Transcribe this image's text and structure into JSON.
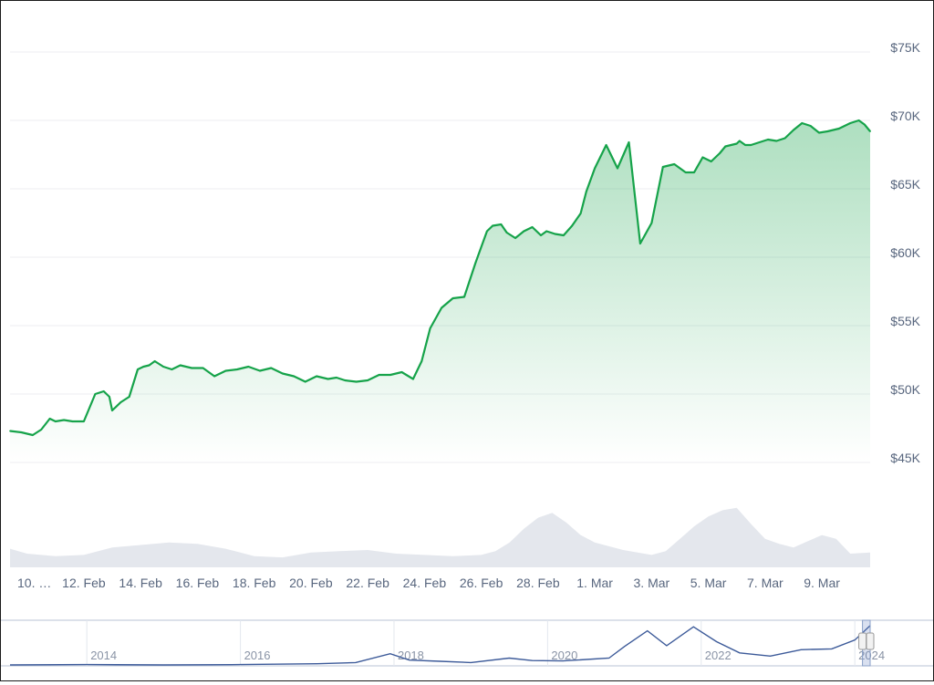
{
  "chart_data": {
    "type": "line",
    "title": "",
    "xlabel": "",
    "ylabel": "",
    "ylim": [
      45000,
      75000
    ],
    "y_ticks": [
      {
        "value": 75000,
        "label": "$75K"
      },
      {
        "value": 70000,
        "label": "$70K"
      },
      {
        "value": 65000,
        "label": "$65K"
      },
      {
        "value": 60000,
        "label": "$60K"
      },
      {
        "value": 55000,
        "label": "$55K"
      },
      {
        "value": 50000,
        "label": "$50K"
      },
      {
        "value": 45000,
        "label": "$45K"
      }
    ],
    "x_tick_labels": [
      "10. …",
      "12. Feb",
      "14. Feb",
      "16. Feb",
      "18. Feb",
      "20. Feb",
      "22. Feb",
      "24. Feb",
      "26. Feb",
      "28. Feb",
      "1. Mar",
      "3. Mar",
      "5. Mar",
      "7. Mar",
      "9. Mar"
    ],
    "x_tick_days": [
      0,
      2,
      4,
      6,
      8,
      10,
      12,
      14,
      16,
      18,
      20,
      22,
      24,
      26,
      28
    ],
    "x_range_days": [
      -0.6,
      29.7
    ],
    "price_series": {
      "name": "Price",
      "color": "#16a34a",
      "x_days": [
        -0.6,
        -0.2,
        0.2,
        0.5,
        0.8,
        1.0,
        1.3,
        1.6,
        2.0,
        2.4,
        2.7,
        2.9,
        3.0,
        3.3,
        3.6,
        3.9,
        4.1,
        4.3,
        4.5,
        4.8,
        5.1,
        5.4,
        5.8,
        6.2,
        6.6,
        7.0,
        7.4,
        7.8,
        8.2,
        8.6,
        9.0,
        9.4,
        9.8,
        10.2,
        10.6,
        10.9,
        11.2,
        11.6,
        12.0,
        12.4,
        12.8,
        13.2,
        13.6,
        13.9,
        14.2,
        14.6,
        15.0,
        15.4,
        15.8,
        16.2,
        16.4,
        16.7,
        16.9,
        17.2,
        17.5,
        17.8,
        18.1,
        18.3,
        18.6,
        18.9,
        19.2,
        19.5,
        19.7,
        20.0,
        20.4,
        20.8,
        21.2,
        21.6,
        22.0,
        22.4,
        22.8,
        23.2,
        23.5,
        23.8,
        24.1,
        24.4,
        24.6,
        24.8,
        25.0,
        25.1,
        25.3,
        25.5,
        25.8,
        26.1,
        26.4,
        26.7,
        27.0,
        27.3,
        27.6,
        27.9,
        28.2,
        28.6,
        29.0,
        29.3,
        29.5,
        29.7
      ],
      "y": [
        47300,
        47200,
        47000,
        47400,
        48200,
        48000,
        48100,
        48000,
        48000,
        50000,
        50200,
        49800,
        48800,
        49400,
        49800,
        51800,
        52000,
        52100,
        52400,
        52000,
        51800,
        52100,
        51900,
        51900,
        51300,
        51700,
        51800,
        52000,
        51700,
        51900,
        51500,
        51300,
        50900,
        51300,
        51100,
        51200,
        51000,
        50900,
        51000,
        51400,
        51400,
        51600,
        51100,
        52400,
        54800,
        56300,
        57000,
        57100,
        59600,
        61900,
        62300,
        62400,
        61800,
        61400,
        61900,
        62200,
        61600,
        61900,
        61700,
        61600,
        62300,
        63200,
        64800,
        66500,
        68200,
        66500,
        68400,
        61000,
        62500,
        66600,
        66800,
        66200,
        66200,
        67300,
        67000,
        67600,
        68100,
        68200,
        68300,
        68500,
        68200,
        68200,
        68400,
        68600,
        68500,
        68700,
        69300,
        69800,
        69600,
        69100,
        69200,
        69400,
        69800,
        70000,
        69700,
        69200
      ],
      "data_labels": []
    },
    "volume_series": {
      "name": "",
      "color": "#dfe3ea",
      "x_days": [
        -0.6,
        0.0,
        1.0,
        2.0,
        3.0,
        4.0,
        5.0,
        6.0,
        7.0,
        8.0,
        9.0,
        10.0,
        11.0,
        12.0,
        13.0,
        14.0,
        15.0,
        16.0,
        16.5,
        17.0,
        17.5,
        18.0,
        18.5,
        19.0,
        19.5,
        20.0,
        21.0,
        22.0,
        22.5,
        23.0,
        23.5,
        24.0,
        24.5,
        25.0,
        25.5,
        26.0,
        26.5,
        27.0,
        27.5,
        28.0,
        28.5,
        29.0,
        29.7
      ],
      "relative_height": [
        0.3,
        0.22,
        0.18,
        0.2,
        0.32,
        0.36,
        0.4,
        0.38,
        0.3,
        0.18,
        0.16,
        0.24,
        0.26,
        0.28,
        0.22,
        0.2,
        0.18,
        0.2,
        0.26,
        0.4,
        0.62,
        0.8,
        0.88,
        0.72,
        0.52,
        0.4,
        0.28,
        0.2,
        0.26,
        0.46,
        0.66,
        0.82,
        0.92,
        0.96,
        0.7,
        0.46,
        0.38,
        0.32,
        0.42,
        0.52,
        0.46,
        0.22,
        0.24
      ]
    },
    "navigator": {
      "tick_labels": [
        "2014",
        "2016",
        "2018",
        "2020",
        "2022",
        "2024"
      ],
      "tick_years": [
        2014,
        2016,
        2018,
        2020,
        2022,
        2024
      ],
      "range_years": [
        2013.0,
        2024.2
      ],
      "selection_years": [
        2024.1,
        2024.2
      ],
      "series_x_years": [
        2013.0,
        2014.0,
        2015.0,
        2016.0,
        2017.0,
        2017.5,
        2017.95,
        2018.2,
        2018.6,
        2019.0,
        2019.5,
        2019.8,
        2020.2,
        2020.8,
        2021.0,
        2021.3,
        2021.55,
        2021.9,
        2022.2,
        2022.5,
        2022.9,
        2023.3,
        2023.7,
        2024.0,
        2024.2
      ],
      "series_y_rel": [
        0.0,
        0.01,
        0.0,
        0.01,
        0.03,
        0.06,
        0.28,
        0.12,
        0.09,
        0.06,
        0.17,
        0.11,
        0.1,
        0.17,
        0.46,
        0.85,
        0.48,
        0.95,
        0.58,
        0.3,
        0.22,
        0.38,
        0.4,
        0.62,
        0.98
      ]
    }
  }
}
